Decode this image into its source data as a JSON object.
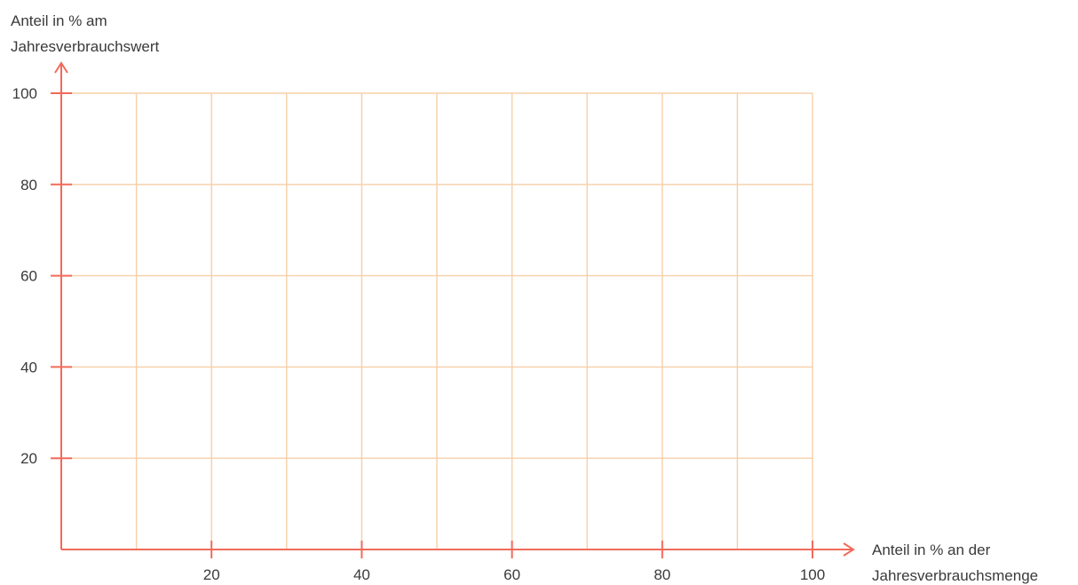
{
  "chart_data": {
    "type": "line",
    "title": "",
    "y_axis_title_lines": [
      "Anteil in % am",
      "Jahresverbrauchswert"
    ],
    "x_axis_title_lines": [
      "Anteil in % an der",
      "Jahresverbrauchsmenge"
    ],
    "xlim": [
      0,
      100
    ],
    "ylim": [
      0,
      100
    ],
    "x_tick_labels": [
      "20",
      "40",
      "60",
      "80",
      "100"
    ],
    "y_tick_labels": [
      "20",
      "40",
      "60",
      "80",
      "100"
    ],
    "x_grid_values": [
      10,
      20,
      30,
      40,
      50,
      60,
      70,
      80,
      90,
      100
    ],
    "y_grid_values": [
      20,
      40,
      60,
      80,
      100
    ],
    "grid": true,
    "series": [],
    "colors": {
      "axis": "#f26a5a",
      "grid": "#f7cfa8",
      "text": "#3a3a3a"
    }
  }
}
